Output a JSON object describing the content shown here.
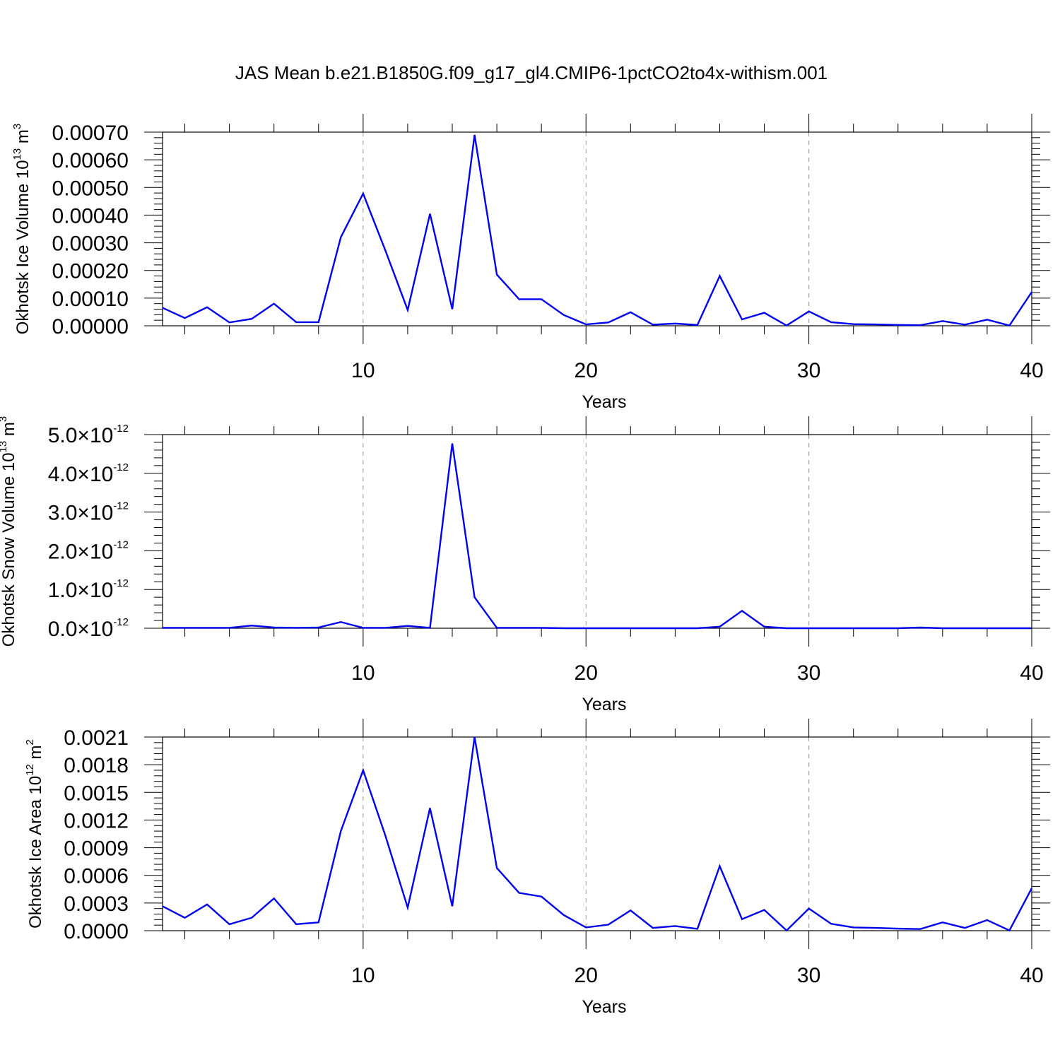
{
  "title": "JAS Mean b.e21.B1850G.f09_g17_gl4.CMIP6-1pctCO2to4x-withism.001",
  "colors": {
    "line": "#0000ee",
    "axis": "#000000",
    "grid": "#999999"
  },
  "chart_data": [
    {
      "type": "line",
      "ylabel": {
        "text": "Okhotsk Ice Volume 10",
        "sup": "13",
        "unit": " m",
        "unit_sup": "3"
      },
      "xlabel": "Years",
      "xlim": [
        1,
        40
      ],
      "ylim": [
        0,
        0.0007
      ],
      "xticks": [
        10,
        20,
        30,
        40
      ],
      "xtick_labels": [
        "10",
        "20",
        "30",
        "40"
      ],
      "yticks": [
        0,
        0.0001,
        0.0002,
        0.0003,
        0.0004,
        0.0005,
        0.0006,
        0.0007
      ],
      "ytick_labels": [
        "0.00000",
        "0.00010",
        "0.00020",
        "0.00030",
        "0.00040",
        "0.00050",
        "0.00060",
        "0.00070"
      ],
      "grid": "x-dashed",
      "x": [
        1,
        2,
        3,
        4,
        5,
        6,
        7,
        8,
        9,
        10,
        11,
        12,
        13,
        14,
        15,
        16,
        17,
        18,
        19,
        20,
        21,
        22,
        23,
        24,
        25,
        26,
        27,
        28,
        29,
        30,
        31,
        32,
        33,
        34,
        35,
        36,
        37,
        38,
        39,
        40
      ],
      "y": [
        6.5e-05,
        2.8e-05,
        6.7e-05,
        1.2e-05,
        2.5e-05,
        8e-05,
        1.3e-05,
        1.3e-05,
        0.00032,
        0.000478,
        0.000272,
        5.7e-05,
        0.000405,
        6e-05,
        0.00069,
        0.000185,
        9.6e-05,
        9.6e-05,
        3.9e-05,
        5e-06,
        1.2e-05,
        4.9e-05,
        4e-06,
        8e-06,
        3e-06,
        0.00018,
        2.3e-05,
        4.7e-05,
        1e-06,
        5.2e-05,
        1.3e-05,
        6e-06,
        5e-06,
        3e-06,
        2e-06,
        1.7e-05,
        4e-06,
        2.2e-05,
        1e-06,
        0.000122
      ]
    },
    {
      "type": "line",
      "ylabel": {
        "text": "Okhotsk Snow Volume 10",
        "sup": "13",
        "unit": " m",
        "unit_sup": "3"
      },
      "xlabel": "Years",
      "xlim": [
        1,
        40
      ],
      "ylim": [
        0,
        5e-12
      ],
      "xticks": [
        10,
        20,
        30,
        40
      ],
      "xtick_labels": [
        "10",
        "20",
        "30",
        "40"
      ],
      "yticks": [
        0,
        1e-12,
        2e-12,
        3e-12,
        4e-12,
        5e-12
      ],
      "ytick_mantissas": [
        "0.0",
        "1.0",
        "2.0",
        "3.0",
        "4.0",
        "5.0"
      ],
      "ytick_times": "×10",
      "ytick_exponent": "-12",
      "grid": "x-dashed",
      "x": [
        1,
        2,
        3,
        4,
        5,
        6,
        7,
        8,
        9,
        10,
        11,
        12,
        13,
        14,
        15,
        16,
        17,
        18,
        19,
        20,
        21,
        22,
        23,
        24,
        25,
        26,
        27,
        28,
        29,
        30,
        31,
        32,
        33,
        34,
        35,
        36,
        37,
        38,
        39,
        40
      ],
      "y": [
        1e-14,
        1e-14,
        1e-14,
        1e-14,
        7e-14,
        2e-14,
        1e-14,
        2e-14,
        1.6e-13,
        1e-14,
        1e-14,
        6e-14,
        1e-14,
        4.77e-12,
        8e-13,
        1e-14,
        1e-14,
        1e-14,
        0.0,
        0.0,
        0.0,
        0.0,
        0.0,
        0.0,
        0.0,
        4e-14,
        4.5e-13,
        4e-14,
        0.0,
        0.0,
        0.0,
        0.0,
        0.0,
        0.0,
        2e-14,
        0.0,
        0.0,
        0.0,
        0.0,
        0.0
      ]
    },
    {
      "type": "line",
      "ylabel": {
        "text": "Okhotsk Ice Area 10",
        "sup": "12",
        "unit": " m",
        "unit_sup": "2"
      },
      "xlabel": "Years",
      "xlim": [
        1,
        40
      ],
      "ylim": [
        0,
        0.0021
      ],
      "xticks": [
        10,
        20,
        30,
        40
      ],
      "xtick_labels": [
        "10",
        "20",
        "30",
        "40"
      ],
      "yticks": [
        0,
        0.0003,
        0.0006,
        0.0009,
        0.0012,
        0.0015,
        0.0018,
        0.0021
      ],
      "ytick_labels": [
        "0.0000",
        "0.0003",
        "0.0006",
        "0.0009",
        "0.0012",
        "0.0015",
        "0.0018",
        "0.0021"
      ],
      "grid": "x-dashed",
      "x": [
        1,
        2,
        3,
        4,
        5,
        6,
        7,
        8,
        9,
        10,
        11,
        12,
        13,
        14,
        15,
        16,
        17,
        18,
        19,
        20,
        21,
        22,
        23,
        24,
        25,
        26,
        27,
        28,
        29,
        30,
        31,
        32,
        33,
        34,
        35,
        36,
        37,
        38,
        39,
        40
      ],
      "y": [
        0.000265,
        0.00014,
        0.000285,
        7e-05,
        0.00014,
        0.00035,
        7e-05,
        9e-05,
        0.00108,
        0.00174,
        0.00103,
        0.00025,
        0.00133,
        0.000265,
        0.0021,
        0.00068,
        0.00041,
        0.00037,
        0.00017,
        3.5e-05,
        6.5e-05,
        0.00022,
        3e-05,
        5e-05,
        2e-05,
        0.0007,
        0.000125,
        0.000225,
        2e-06,
        0.00024,
        7.5e-05,
        3.5e-05,
        3e-05,
        2.2e-05,
        1.8e-05,
        9e-05,
        3e-05,
        0.000115,
        2e-06,
        0.00046
      ]
    }
  ]
}
